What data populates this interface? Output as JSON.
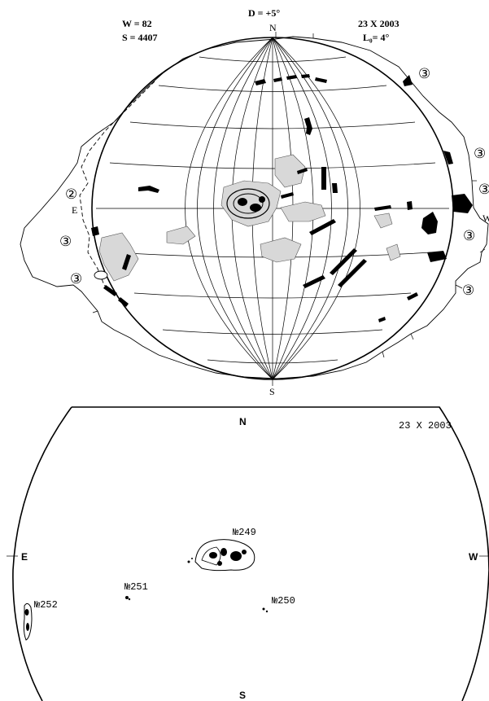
{
  "header": {
    "w_label": "W = 82",
    "s_label": "S = 4407",
    "d_label": "D = +5°",
    "date_top": "23 X 2003",
    "l0_label": "L₀= 4°"
  },
  "top_map": {
    "north": "N",
    "south": "S",
    "east": "E",
    "west": "W",
    "activity_markers": [
      {
        "value": "③",
        "side": "right"
      },
      {
        "value": "③",
        "side": "right"
      },
      {
        "value": "③",
        "side": "right"
      },
      {
        "value": "③",
        "side": "right"
      },
      {
        "value": "③",
        "side": "right"
      },
      {
        "value": "②",
        "side": "left"
      },
      {
        "value": "③",
        "side": "left"
      },
      {
        "value": "③",
        "side": "left"
      }
    ]
  },
  "bottom_map": {
    "north": "N",
    "south": "S",
    "east": "E",
    "west": "W",
    "date": "23 X 2003",
    "groups": [
      {
        "id": "№249"
      },
      {
        "id": "№251"
      },
      {
        "id": "№250"
      },
      {
        "id": "№252"
      }
    ]
  }
}
